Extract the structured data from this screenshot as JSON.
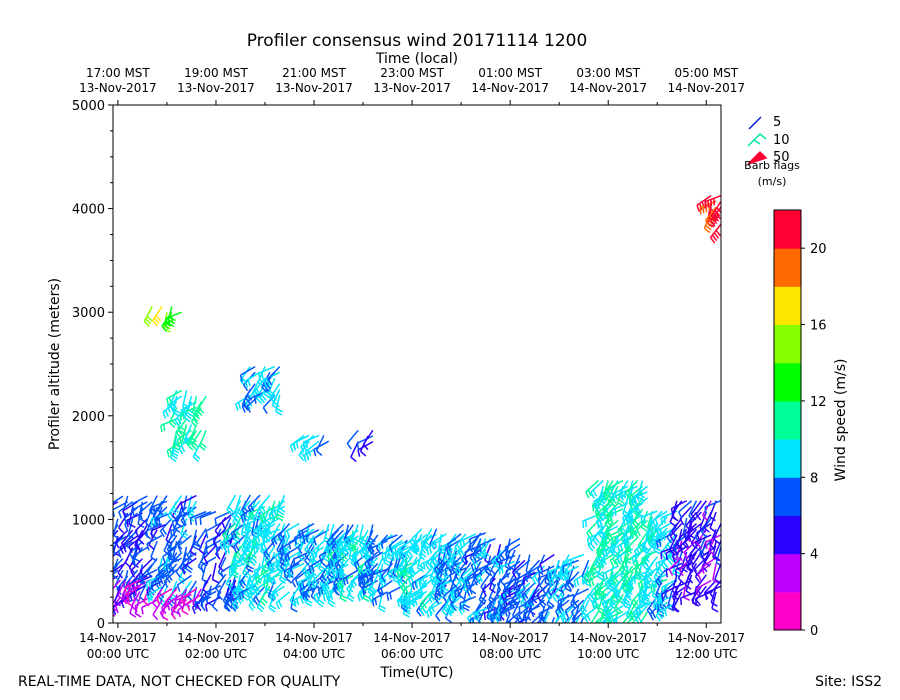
{
  "chart_data": {
    "type": "wind-barb-time-height",
    "title": "Profiler consensus wind 20171114 1200",
    "xlabel_bottom": "Time(UTC)",
    "xlabel_top": "Time (local)",
    "ylabel": "Profiler altitude (meters)",
    "ylim": [
      0,
      5000
    ],
    "y_ticks": [
      "0",
      "1000",
      "2000",
      "3000",
      "4000",
      "5000"
    ],
    "x_range_hours_utc": [
      -0.1,
      12.3
    ],
    "x_ticks_utc": [
      {
        "hour": 0,
        "line1": "14-Nov-2017",
        "line2": "00:00 UTC"
      },
      {
        "hour": 2,
        "line1": "14-Nov-2017",
        "line2": "02:00 UTC"
      },
      {
        "hour": 4,
        "line1": "14-Nov-2017",
        "line2": "04:00 UTC"
      },
      {
        "hour": 6,
        "line1": "14-Nov-2017",
        "line2": "06:00 UTC"
      },
      {
        "hour": 8,
        "line1": "14-Nov-2017",
        "line2": "08:00 UTC"
      },
      {
        "hour": 10,
        "line1": "14-Nov-2017",
        "line2": "10:00 UTC"
      },
      {
        "hour": 12,
        "line1": "14-Nov-2017",
        "line2": "12:00 UTC"
      }
    ],
    "x_ticks_local": [
      {
        "hour": 0,
        "line1": "17:00 MST",
        "line2": "13-Nov-2017"
      },
      {
        "hour": 2,
        "line1": "19:00 MST",
        "line2": "13-Nov-2017"
      },
      {
        "hour": 4,
        "line1": "21:00 MST",
        "line2": "13-Nov-2017"
      },
      {
        "hour": 6,
        "line1": "23:00 MST",
        "line2": "13-Nov-2017"
      },
      {
        "hour": 8,
        "line1": "01:00 MST",
        "line2": "14-Nov-2017"
      },
      {
        "hour": 10,
        "line1": "03:00 MST",
        "line2": "14-Nov-2017"
      },
      {
        "hour": 12,
        "line1": "05:00 MST",
        "line2": "14-Nov-2017"
      }
    ],
    "colorbar": {
      "label": "Wind speed (m/s)",
      "range": [
        0,
        22
      ],
      "ticks": [
        "0",
        "4",
        "8",
        "12",
        "16",
        "20"
      ],
      "colors": [
        "#ff00c8",
        "#c000ff",
        "#2a00ff",
        "#0055ff",
        "#00e5ff",
        "#00ff99",
        "#00ff00",
        "#88ff00",
        "#ffe600",
        "#ff6a00",
        "#ff0033"
      ]
    },
    "barb_legend": {
      "entries": [
        {
          "value": "5",
          "color": "#0b1dd6"
        },
        {
          "value": "10",
          "color": "#00e5a0"
        },
        {
          "value": "50",
          "color": "#ff0033"
        }
      ],
      "caption_line1": "Barb flags",
      "caption_line2": "(m/s)"
    },
    "barb_groups": [
      {
        "name": "0.0-0.7h upper",
        "t0": 0.0,
        "t1": 0.7,
        "z0": 400,
        "z1": 1250,
        "speed": 6
      },
      {
        "name": "0.0-0.7h lower",
        "t0": 0.05,
        "t1": 0.7,
        "z0": 250,
        "z1": 450,
        "speed": 3
      },
      {
        "name": "0.8-1.6h upper",
        "t0": 0.8,
        "t1": 1.6,
        "z0": 350,
        "z1": 1250,
        "speed": 7
      },
      {
        "name": "0.8-1.6h lower",
        "t0": 0.8,
        "t1": 1.7,
        "z0": 220,
        "z1": 350,
        "speed": 2.5
      },
      {
        "name": "1.8-2.4h",
        "t0": 1.8,
        "t1": 2.4,
        "z0": 250,
        "z1": 1100,
        "speed": 6
      },
      {
        "name": "2.4-3.4h",
        "t0": 2.4,
        "t1": 3.4,
        "z0": 300,
        "z1": 1250,
        "speed": 9
      },
      {
        "name": "3.4-4.0h",
        "t0": 3.4,
        "t1": 4.0,
        "z0": 300,
        "z1": 1000,
        "speed": 8
      },
      {
        "name": "4.0-4.6h",
        "t0": 4.0,
        "t1": 4.6,
        "z0": 350,
        "z1": 1000,
        "speed": 8
      },
      {
        "name": "4.6-5.2h",
        "t0": 4.6,
        "t1": 5.2,
        "z0": 400,
        "z1": 950,
        "speed": 9
      },
      {
        "name": "5.2-5.9h",
        "t0": 5.2,
        "t1": 5.9,
        "z0": 300,
        "z1": 900,
        "speed": 8
      },
      {
        "name": "5.9-6.6h",
        "t0": 5.9,
        "t1": 6.6,
        "z0": 250,
        "z1": 950,
        "speed": 9
      },
      {
        "name": "6.6-7.4h",
        "t0": 6.6,
        "t1": 7.4,
        "z0": 200,
        "z1": 900,
        "speed": 8
      },
      {
        "name": "7.4-8.2h",
        "t0": 7.4,
        "t1": 8.2,
        "z0": 100,
        "z1": 900,
        "speed": 7
      },
      {
        "name": "8.2-9.0h",
        "t0": 8.2,
        "t1": 9.0,
        "z0": 0,
        "z1": 700,
        "speed": 7
      },
      {
        "name": "9.0-9.6h",
        "t0": 9.0,
        "t1": 9.6,
        "z0": 0,
        "z1": 700,
        "speed": 8
      },
      {
        "name": "9.8-10.8h",
        "t0": 9.8,
        "t1": 10.8,
        "z0": 0,
        "z1": 1400,
        "speed": 10
      },
      {
        "name": "10.8-11.4h",
        "t0": 10.8,
        "t1": 11.4,
        "z0": 200,
        "z1": 1100,
        "speed": 9
      },
      {
        "name": "11.4-12.3h",
        "t0": 11.4,
        "t1": 12.3,
        "z0": 300,
        "z1": 1200,
        "speed": 5
      },
      {
        "name": "0.7h isolated",
        "t0": 0.7,
        "t1": 1.3,
        "z0": 3000,
        "z1": 3100,
        "speed": 15
      },
      {
        "name": "1.2h isolated",
        "t0": 1.2,
        "t1": 1.8,
        "z0": 1750,
        "z1": 2250,
        "speed": 10
      },
      {
        "name": "2.7h isolated",
        "t0": 2.7,
        "t1": 3.3,
        "z0": 2200,
        "z1": 2500,
        "speed": 8
      },
      {
        "name": "3.8h isolated",
        "t0": 3.8,
        "t1": 4.3,
        "z0": 1700,
        "z1": 1850,
        "speed": 8.5
      },
      {
        "name": "4.9h isolated",
        "t0": 4.9,
        "t1": 5.2,
        "z0": 1750,
        "z1": 1900,
        "speed": 6
      },
      {
        "name": "12.2h isolated",
        "t0": 12.1,
        "t1": 12.3,
        "z0": 3850,
        "z1": 4150,
        "speed": 21
      }
    ]
  },
  "footer": {
    "left": "REAL-TIME DATA, NOT CHECKED FOR QUALITY",
    "right": "Site: ISS2"
  }
}
